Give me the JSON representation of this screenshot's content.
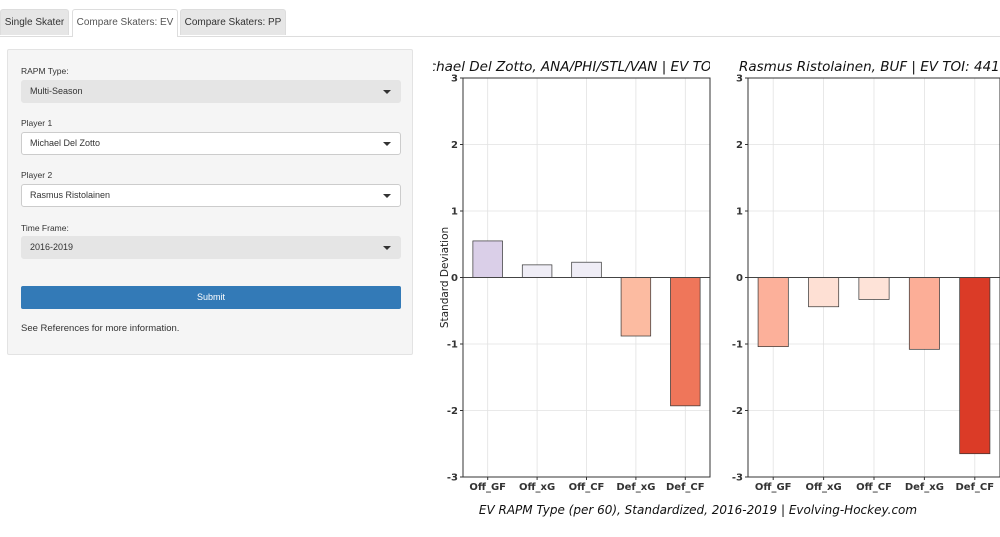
{
  "tabs": [
    {
      "label": "Single Skater",
      "active": false
    },
    {
      "label": "Compare Skaters: EV",
      "active": true
    },
    {
      "label": "Compare Skaters: PP",
      "active": false
    }
  ],
  "sidebar": {
    "rapm_type_label": "RAPM Type:",
    "rapm_type_value": "Multi-Season",
    "player1_label": "Player 1",
    "player1_value": "Michael Del Zotto",
    "player2_label": "Player 2",
    "player2_value": "Rasmus Ristolainen",
    "timeframe_label": "Time Frame:",
    "timeframe_value": "2016-2019",
    "submit_label": "Submit",
    "references_text": "See References for more information."
  },
  "chart_data": {
    "type": "bar",
    "ylabel": "Standard Deviation",
    "caption": "EV RAPM Type (per 60), Standardized, 2016-2019    |    Evolving-Hockey.com",
    "ylim": [
      -3,
      3
    ],
    "yticks": [
      3,
      2,
      1,
      0,
      -1,
      -2,
      -3
    ],
    "grid": true,
    "categories": [
      "Off_GF",
      "Off_xG",
      "Off_CF",
      "Def_xG",
      "Def_CF"
    ],
    "panels": [
      {
        "title": "Michael Del Zotto, ANA/PHI/STL/VAN  |  EV TOI: ",
        "values": [
          0.55,
          0.19,
          0.23,
          -0.88,
          -1.93
        ],
        "colors": [
          "#dacfe8",
          "#efedf6",
          "#efedf6",
          "#fcbba1",
          "#ef765a"
        ]
      },
      {
        "title": "Rasmus Ristolainen, BUF  |  EV TOI: 441",
        "values": [
          -1.04,
          -0.44,
          -0.33,
          -1.08,
          -2.65
        ],
        "colors": [
          "#fcb09a",
          "#fee0d4",
          "#fee3d8",
          "#fcae97",
          "#db3b27"
        ]
      }
    ]
  }
}
